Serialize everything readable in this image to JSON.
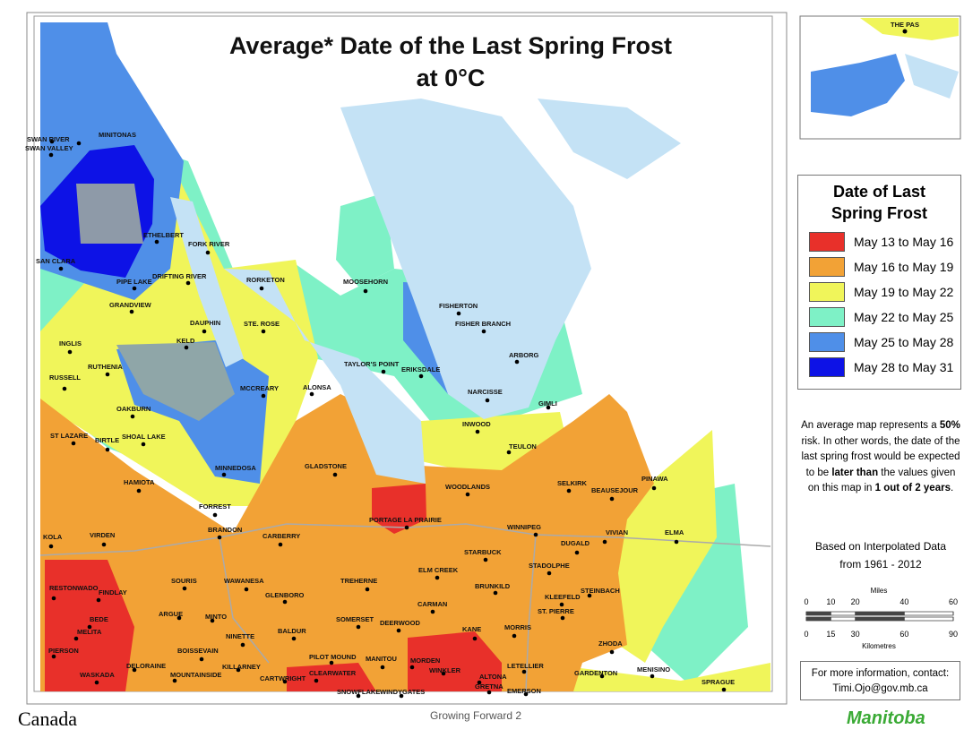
{
  "title": [
    "Average* Date of the Last Spring Frost",
    "at 0°C"
  ],
  "inset_label": "THE PAS",
  "legend": {
    "title": [
      "Date of Last",
      "Spring Frost"
    ],
    "items": [
      {
        "label": "May 13 to May 16",
        "color": "#e8302a"
      },
      {
        "label": "May 16 to May 19",
        "color": "#f2a236"
      },
      {
        "label": "May 19 to May 22",
        "color": "#f0f55a"
      },
      {
        "label": "May 22 to May 25",
        "color": "#7ef1c6"
      },
      {
        "label": "May 25 to May 28",
        "color": "#4f8fe8"
      },
      {
        "label": "May 28 to May 31",
        "color": "#0d12e6"
      }
    ]
  },
  "note": [
    {
      "text": "An average map represents a ",
      "bold": false
    },
    {
      "text": "50%",
      "bold": true
    },
    {
      "text": " risk. In other words, the date of the last spring frost would be expected to be ",
      "bold": false
    },
    {
      "text": "later than",
      "bold": true
    },
    {
      "text": " the values given on this map in ",
      "bold": false
    },
    {
      "text": "1 out of 2 years",
      "bold": true
    },
    {
      "text": ".",
      "bold": false
    }
  ],
  "source": [
    "Based on Interpolated Data",
    "from 1961 - 2012"
  ],
  "scale": {
    "miles": {
      "unit": "Miles",
      "ticks": [
        0,
        10,
        20,
        40,
        60
      ]
    },
    "kilometres": {
      "unit": "Kilometres",
      "ticks": [
        0,
        15,
        30,
        60,
        90
      ]
    }
  },
  "contact": [
    "For more information, contact:",
    "Timi.Ojo@gov.mb.ca"
  ],
  "footer": {
    "canada": "Canada",
    "growing_forward": "Growing Forward 2",
    "manitoba": "Manitoba"
  },
  "places": [
    "SWAN RIVER",
    "MINITONAS",
    "SWAN VALLEY",
    "ETHELBERT",
    "SAN CLARA",
    "DRIFTING RIVER",
    "PIPE LAKE",
    "FORK RIVER",
    "RORKETON",
    "MOOSEHORN",
    "FISHERTON",
    "FISHER BRANCH",
    "GRANDVIEW",
    "DAUPHIN",
    "STE. ROSE",
    "KELD",
    "INGLIS",
    "ARBORG",
    "RUTHENIA",
    "TAYLOR'S POINT",
    "ERIKSDALE",
    "RUSSELL",
    "MCCREARY",
    "ALONSA",
    "NARCISSE",
    "GIMLI",
    "OAKBURN",
    "INWOOD",
    "ST LAZARE",
    "SHOAL LAKE",
    "BIRTLE",
    "TEULON",
    "MINNEDOSA",
    "HAMIOTA",
    "GLADSTONE",
    "WOODLANDS",
    "SELKIRK",
    "PINAWA",
    "BEAUSEJOUR",
    "FORREST",
    "PORTAGE LA PRAIRIE",
    "BRANDON",
    "WINNIPEG",
    "KOLA",
    "VIRDEN",
    "CARBERRY",
    "VIVIAN",
    "ELMA",
    "DUGALD",
    "STARBUCK",
    "ELM CREEK",
    "STADOLPHE",
    "RESTONWADO",
    "FINDLAY",
    "SOURIS",
    "WAWANESA",
    "TREHERNE",
    "BRUNKILD",
    "STEINBACH",
    "KLEEFELD",
    "GLENBORO",
    "CARMAN",
    "ST. PIERRE",
    "ARGUE",
    "MINTO",
    "BEDE",
    "SOMERSET",
    "DEERWOOD",
    "MELITA",
    "KANE",
    "MORRIS",
    "BALDUR",
    "NINETTE",
    "ZHODA",
    "PIERSON",
    "BOISSEVAIN",
    "PILOT MOUND",
    "MANITOU",
    "MORDEN",
    "DELORAINE",
    "MOUNTAINSIDE",
    "KILLARNEY",
    "LETELLIER",
    "MENISINO",
    "CLEARWATER",
    "WINKLER",
    "WASKADA",
    "CARTWRIGHT",
    "ALTONA",
    "GARDENTON",
    "GRETNA",
    "EMERSON",
    "SPRAGUE",
    "SNOWFLAKE",
    "WINDYGATES"
  ]
}
